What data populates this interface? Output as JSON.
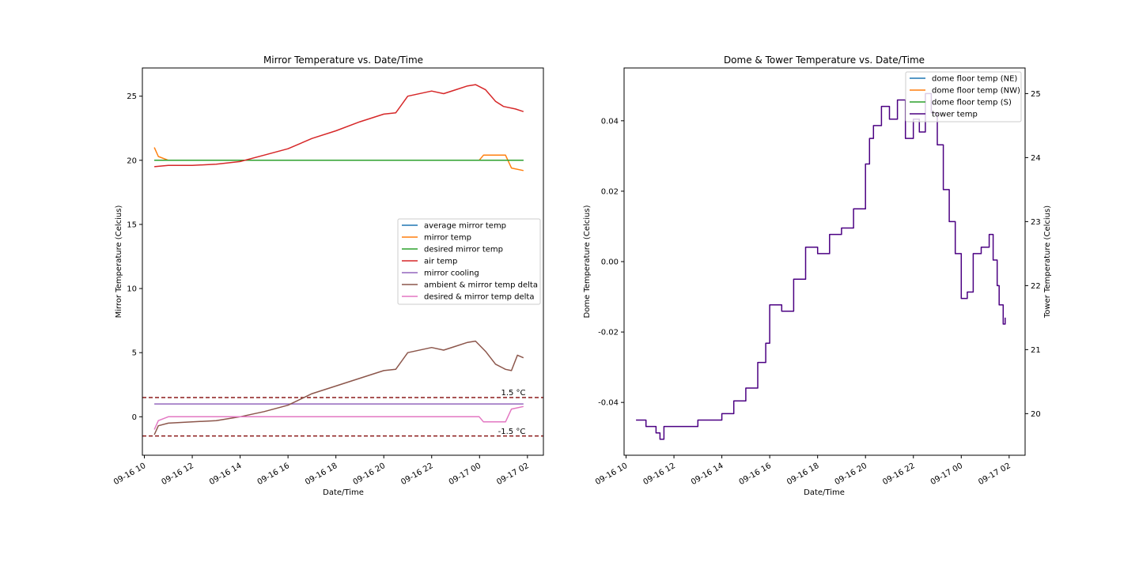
{
  "chart_data": [
    {
      "type": "line",
      "title": "Mirror Temperature vs. Date/Time",
      "xlabel": "Date/Time",
      "ylabel": "Mirror Temperature (Celcius)",
      "xlim": [
        "2023-09-16 09:55",
        "2023-09-17 02:40"
      ],
      "ylim": [
        -3,
        27.2
      ],
      "x_ticks": [
        "09-16 10",
        "09-16 12",
        "09-16 14",
        "09-16 16",
        "09-16 18",
        "09-16 20",
        "09-16 22",
        "09-17 00",
        "09-17 02"
      ],
      "y_ticks": [
        0,
        5,
        10,
        15,
        20,
        25
      ],
      "legend": {
        "placement": "center-right",
        "entries": [
          "average mirror temp",
          "mirror temp",
          "desired mirror temp",
          "air temp",
          "mirror cooling",
          "ambient & mirror temp delta",
          "desired & mirror temp delta"
        ]
      },
      "hlines": [
        {
          "y": 1.5,
          "label": "1.5 °C",
          "color": "#8b1a1a"
        },
        {
          "y": -1.5,
          "label": "-1.5 °C",
          "color": "#8b1a1a"
        }
      ],
      "colors": [
        "#1f77b4",
        "#ff7f0e",
        "#2ca02c",
        "#d62728",
        "#9467bd",
        "#8c564b",
        "#e377c2"
      ],
      "series": [
        {
          "name": "average mirror temp",
          "x": [
            "2023-09-16 10:25",
            "2023-09-17 01:50"
          ],
          "values": [
            20.0,
            20.0
          ]
        },
        {
          "name": "mirror temp",
          "x": [
            "2023-09-16 10:25",
            "2023-09-16 10:35",
            "2023-09-16 11:00",
            "2023-09-16 13:00",
            "2023-09-16 16:00",
            "2023-09-16 20:00",
            "2023-09-16 23:00",
            "2023-09-16 23:59",
            "2023-09-17 00:10",
            "2023-09-17 01:05",
            "2023-09-17 01:20",
            "2023-09-17 01:50"
          ],
          "values": [
            21.0,
            20.3,
            20.0,
            20.0,
            20.0,
            20.0,
            20.0,
            20.0,
            20.4,
            20.4,
            19.4,
            19.2
          ]
        },
        {
          "name": "desired mirror temp",
          "x": [
            "2023-09-16 10:25",
            "2023-09-17 01:50"
          ],
          "values": [
            20.0,
            20.0
          ]
        },
        {
          "name": "air temp",
          "x": [
            "2023-09-16 10:25",
            "2023-09-16 11:00",
            "2023-09-16 12:00",
            "2023-09-16 13:00",
            "2023-09-16 14:00",
            "2023-09-16 15:00",
            "2023-09-16 16:00",
            "2023-09-16 17:00",
            "2023-09-16 18:00",
            "2023-09-16 19:00",
            "2023-09-16 20:00",
            "2023-09-16 20:30",
            "2023-09-16 21:00",
            "2023-09-16 22:00",
            "2023-09-16 22:30",
            "2023-09-16 23:00",
            "2023-09-16 23:30",
            "2023-09-16 23:50",
            "2023-09-17 00:15",
            "2023-09-17 00:40",
            "2023-09-17 01:00",
            "2023-09-17 01:30",
            "2023-09-17 01:50"
          ],
          "values": [
            19.5,
            19.6,
            19.6,
            19.7,
            19.9,
            20.4,
            20.9,
            21.7,
            22.3,
            23.0,
            23.6,
            23.7,
            25.0,
            25.4,
            25.2,
            25.5,
            25.8,
            25.9,
            25.5,
            24.6,
            24.2,
            24.0,
            23.8
          ]
        },
        {
          "name": "mirror cooling",
          "x": [
            "2023-09-16 10:25",
            "2023-09-17 01:50"
          ],
          "values": [
            1.0,
            1.0
          ]
        },
        {
          "name": "ambient & mirror temp delta",
          "x": [
            "2023-09-16 10:25",
            "2023-09-16 10:35",
            "2023-09-16 11:00",
            "2023-09-16 12:00",
            "2023-09-16 13:00",
            "2023-09-16 14:00",
            "2023-09-16 15:00",
            "2023-09-16 16:00",
            "2023-09-16 17:00",
            "2023-09-16 18:00",
            "2023-09-16 19:00",
            "2023-09-16 20:00",
            "2023-09-16 20:30",
            "2023-09-16 21:00",
            "2023-09-16 22:00",
            "2023-09-16 22:30",
            "2023-09-16 23:00",
            "2023-09-16 23:30",
            "2023-09-16 23:50",
            "2023-09-17 00:15",
            "2023-09-17 00:40",
            "2023-09-17 01:05",
            "2023-09-17 01:20",
            "2023-09-17 01:35",
            "2023-09-17 01:50"
          ],
          "values": [
            -1.4,
            -0.7,
            -0.5,
            -0.4,
            -0.3,
            0.0,
            0.4,
            0.9,
            1.8,
            2.4,
            3.0,
            3.6,
            3.7,
            5.0,
            5.4,
            5.2,
            5.5,
            5.8,
            5.9,
            5.1,
            4.1,
            3.7,
            3.6,
            4.8,
            4.6
          ]
        },
        {
          "name": "desired & mirror temp delta",
          "x": [
            "2023-09-16 10:25",
            "2023-09-16 10:35",
            "2023-09-16 11:00",
            "2023-09-16 13:00",
            "2023-09-16 16:00",
            "2023-09-16 20:00",
            "2023-09-16 23:00",
            "2023-09-16 23:59",
            "2023-09-17 00:10",
            "2023-09-17 01:05",
            "2023-09-17 01:20",
            "2023-09-17 01:50"
          ],
          "values": [
            -1.0,
            -0.3,
            0.0,
            0.0,
            0.0,
            0.0,
            0.0,
            0.0,
            -0.4,
            -0.4,
            0.6,
            0.8
          ]
        }
      ]
    },
    {
      "type": "line",
      "title": "Dome & Tower Temperature vs. Date/Time",
      "xlabel": "Date/Time",
      "ylabel": "Dome Temperature (Celcius)",
      "ylabel_right": "Tower Temperature (Celcius)",
      "xlim": [
        "2023-09-16 09:55",
        "2023-09-17 02:40"
      ],
      "ylim": [
        -0.055,
        0.055
      ],
      "ylim_right": [
        19.35,
        25.4
      ],
      "x_ticks": [
        "09-16 10",
        "09-16 12",
        "09-16 14",
        "09-16 16",
        "09-16 18",
        "09-16 20",
        "09-16 22",
        "09-17 00",
        "09-17 02"
      ],
      "y_ticks": [
        -0.04,
        -0.02,
        0.0,
        0.02,
        0.04
      ],
      "y_ticks_right": [
        20,
        21,
        22,
        23,
        24,
        25
      ],
      "legend": {
        "placement": "top-right",
        "entries": [
          "dome floor temp (NE)",
          "dome floor temp (NW)",
          "dome floor temp (S)",
          "tower temp"
        ]
      },
      "colors": [
        "#1f77b4",
        "#ff7f0e",
        "#2ca02c",
        "#4b0082"
      ],
      "series": [
        {
          "name": "dome floor temp (NE)",
          "x": [],
          "values": []
        },
        {
          "name": "dome floor temp (NW)",
          "x": [],
          "values": []
        },
        {
          "name": "dome floor temp (S)",
          "x": [],
          "values": []
        },
        {
          "name": "tower temp",
          "axis": "right",
          "x": [
            "2023-09-16 10:25",
            "2023-09-16 10:50",
            "2023-09-16 11:15",
            "2023-09-16 11:25",
            "2023-09-16 11:35",
            "2023-09-16 12:30",
            "2023-09-16 13:00",
            "2023-09-16 13:30",
            "2023-09-16 14:00",
            "2023-09-16 14:30",
            "2023-09-16 15:00",
            "2023-09-16 15:30",
            "2023-09-16 15:50",
            "2023-09-16 16:00",
            "2023-09-16 16:30",
            "2023-09-16 17:00",
            "2023-09-16 17:30",
            "2023-09-16 18:00",
            "2023-09-16 18:30",
            "2023-09-16 19:00",
            "2023-09-16 19:30",
            "2023-09-16 20:00",
            "2023-09-16 20:10",
            "2023-09-16 20:20",
            "2023-09-16 20:40",
            "2023-09-16 21:00",
            "2023-09-16 21:20",
            "2023-09-16 21:40",
            "2023-09-16 22:00",
            "2023-09-16 22:15",
            "2023-09-16 22:30",
            "2023-09-16 22:45",
            "2023-09-16 23:00",
            "2023-09-16 23:15",
            "2023-09-16 23:30",
            "2023-09-16 23:45",
            "2023-09-17 00:00",
            "2023-09-17 00:15",
            "2023-09-17 00:30",
            "2023-09-17 00:50",
            "2023-09-17 01:10",
            "2023-09-17 01:20",
            "2023-09-17 01:30",
            "2023-09-17 01:35",
            "2023-09-17 01:45",
            "2023-09-17 01:50"
          ],
          "values": [
            19.9,
            19.8,
            19.7,
            19.6,
            19.8,
            19.8,
            19.9,
            19.9,
            20.0,
            20.2,
            20.4,
            20.8,
            21.1,
            21.7,
            21.6,
            22.1,
            22.6,
            22.5,
            22.8,
            22.9,
            23.2,
            23.9,
            24.3,
            24.5,
            24.8,
            24.6,
            24.9,
            24.3,
            24.6,
            24.4,
            25.0,
            24.7,
            24.2,
            23.5,
            23.0,
            22.5,
            21.8,
            21.9,
            22.5,
            22.6,
            22.8,
            22.4,
            22.0,
            21.7,
            21.4,
            21.5
          ]
        }
      ]
    }
  ]
}
